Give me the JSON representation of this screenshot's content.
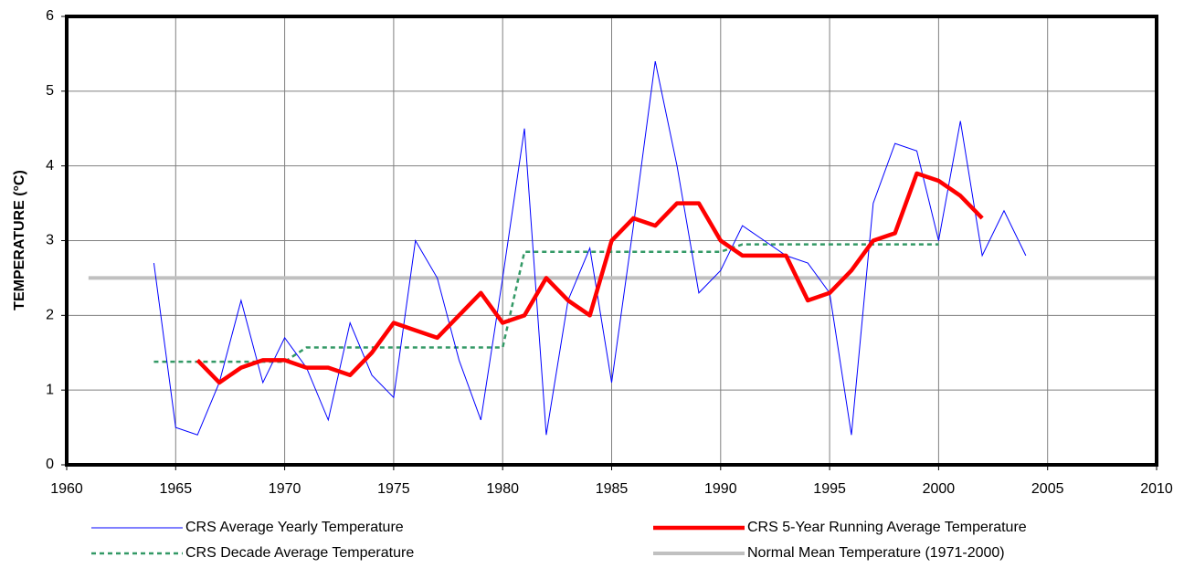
{
  "chart_data": {
    "type": "line",
    "y_label": "TEMPERATURE (°C)",
    "xlim": [
      1960,
      2010
    ],
    "xticks": [
      1960,
      1965,
      1970,
      1975,
      1980,
      1985,
      1990,
      1995,
      2000,
      2005,
      2010
    ],
    "ylim": [
      0,
      6
    ],
    "yticks": [
      0,
      1,
      2,
      3,
      4,
      5,
      6
    ],
    "grid": true,
    "series": [
      {
        "name": "CRS Average Yearly Temperature",
        "color": "#0000ff",
        "x": [
          1964,
          1965,
          1966,
          1967,
          1968,
          1969,
          1970,
          1971,
          1972,
          1973,
          1974,
          1975,
          1976,
          1977,
          1978,
          1979,
          1980,
          1981,
          1982,
          1983,
          1984,
          1985,
          1986,
          1987,
          1988,
          1989,
          1990,
          1991,
          1992,
          1993,
          1994,
          1995,
          1996,
          1997,
          1998,
          1999,
          2000,
          2001,
          2002,
          2003,
          2004
        ],
        "values": [
          2.7,
          0.5,
          0.4,
          1.1,
          2.2,
          1.1,
          1.7,
          1.3,
          0.6,
          1.9,
          1.2,
          0.9,
          3.0,
          2.5,
          1.4,
          0.6,
          2.5,
          4.5,
          0.4,
          2.2,
          2.9,
          1.1,
          3.2,
          5.4,
          4.0,
          2.3,
          2.6,
          3.2,
          3.0,
          2.8,
          2.7,
          2.3,
          0.4,
          3.5,
          4.3,
          4.2,
          3.0,
          4.6,
          2.8,
          3.4,
          2.8
        ]
      },
      {
        "name": "CRS 5-Year Running Average Temperature",
        "color": "#ff0000",
        "x": [
          1966,
          1967,
          1968,
          1969,
          1970,
          1971,
          1972,
          1973,
          1974,
          1975,
          1976,
          1977,
          1978,
          1979,
          1980,
          1981,
          1982,
          1983,
          1984,
          1985,
          1986,
          1987,
          1988,
          1989,
          1990,
          1991,
          1992,
          1993,
          1994,
          1995,
          1996,
          1997,
          1998,
          1999,
          2000,
          2001,
          2002
        ],
        "values": [
          1.4,
          1.1,
          1.3,
          1.4,
          1.4,
          1.3,
          1.3,
          1.2,
          1.5,
          1.9,
          1.8,
          1.7,
          2.0,
          2.3,
          1.9,
          2.0,
          2.5,
          2.2,
          2.0,
          3.0,
          3.3,
          3.2,
          3.5,
          3.5,
          3.0,
          2.8,
          2.8,
          2.8,
          2.2,
          2.3,
          2.6,
          3.0,
          3.1,
          3.9,
          3.8,
          3.6,
          3.3
        ]
      },
      {
        "name": "CRS Decade Average Temperature",
        "color": "#339966",
        "x": [
          1964,
          1970,
          1971,
          1980,
          1981,
          1990,
          1991,
          2000
        ],
        "values": [
          1.38,
          1.38,
          1.57,
          1.57,
          2.85,
          2.85,
          2.95,
          2.95
        ]
      },
      {
        "name": "Normal Mean Temperature (1971-2000)",
        "color": "#c0c0c0",
        "x": [
          1961,
          2010
        ],
        "values": [
          2.5,
          2.5
        ]
      }
    ]
  }
}
